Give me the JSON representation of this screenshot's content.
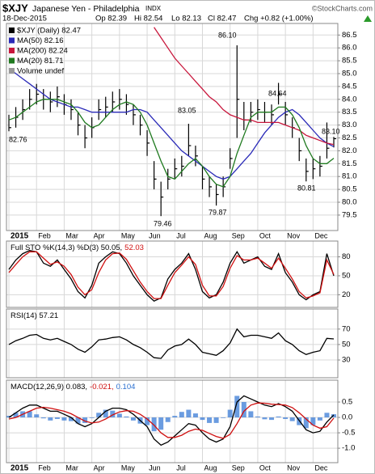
{
  "header": {
    "symbol": "$XJY",
    "name": "Japanese Yen - Philadelphia",
    "exchange": "INDX",
    "source": "©StockCharts.com",
    "date": "18-Dec-2015",
    "open": "Op 82.39",
    "high": "Hi 82.54",
    "low": "Lo 82.13",
    "close": "Cl 82.47",
    "change": "Chg +0.82 (+1.00%)"
  },
  "chart_data": [
    {
      "type": "ohlc",
      "grid": true,
      "categories": [
        "2015",
        null,
        null,
        null,
        "Feb",
        null,
        null,
        null,
        "Mar",
        null,
        null,
        null,
        "Apr",
        null,
        null,
        null,
        "May",
        null,
        null,
        null,
        "Jun",
        null,
        null,
        null,
        "Jul",
        null,
        null,
        null,
        "Aug",
        null,
        null,
        null,
        "Sep",
        null,
        null,
        null,
        "Oct",
        null,
        null,
        null,
        "Nov",
        null,
        null,
        null,
        "Dec",
        null,
        null,
        null
      ],
      "ylim": [
        78.9,
        86.95
      ],
      "yticks": [
        79.5,
        {
          "value": 80,
          "label": "80.0"
        },
        80.5,
        {
          "value": 81,
          "label": "81.0"
        },
        81.5,
        {
          "value": 82,
          "label": "82.0"
        },
        82.5,
        {
          "value": 83,
          "label": "83.0"
        },
        83.5,
        {
          "value": 84,
          "label": "84.0"
        },
        84.5,
        {
          "value": 85,
          "label": "85.0"
        },
        85.5,
        {
          "value": 86,
          "label": "86.0"
        },
        86.5
      ],
      "legend_extra": "Volume undef",
      "annotations": [
        "82.76",
        "79.46",
        "83.05",
        "79.87",
        "86.10",
        "84.64",
        "80.81",
        "83.10"
      ],
      "series": [
        {
          "name": "$XJY (Daily) 82.47",
          "color": "#000000",
          "high": [
            83.4,
            83.7,
            84.0,
            84.4,
            84.6,
            84.4,
            84.3,
            84.5,
            84.2,
            84.0,
            83.5,
            83.0,
            83.3,
            84.0,
            84.1,
            84.3,
            84.4,
            84.2,
            83.8,
            83.4,
            82.8,
            81.6,
            80.8,
            81.3,
            81.7,
            81.8,
            83.05,
            82.2,
            81.4,
            81.0,
            80.7,
            81.0,
            82.1,
            86.1,
            83.9,
            83.9,
            84.0,
            83.9,
            83.8,
            84.64,
            83.9,
            83.3,
            82.5,
            81.7,
            81.7,
            81.8,
            83.1,
            82.54
          ],
          "low": [
            82.76,
            82.9,
            83.2,
            83.6,
            83.8,
            83.6,
            83.5,
            83.7,
            83.4,
            83.2,
            82.6,
            82.1,
            82.5,
            83.2,
            83.3,
            83.5,
            83.6,
            83.4,
            83.0,
            82.6,
            81.8,
            80.5,
            79.46,
            80.5,
            80.9,
            81.0,
            81.8,
            81.4,
            80.5,
            80.2,
            79.87,
            80.2,
            81.3,
            82.5,
            82.8,
            83.1,
            83.2,
            83.1,
            83.0,
            83.8,
            83.0,
            82.5,
            81.6,
            80.81,
            80.9,
            81.0,
            81.7,
            82.13
          ],
          "values": [
            82.9,
            83.3,
            83.6,
            84.0,
            84.2,
            84.0,
            83.9,
            84.1,
            83.8,
            83.6,
            83.0,
            82.5,
            82.9,
            83.6,
            83.7,
            83.9,
            84.0,
            83.8,
            83.4,
            83.0,
            82.3,
            80.9,
            80.2,
            80.9,
            81.3,
            81.4,
            82.2,
            81.8,
            80.9,
            80.6,
            80.3,
            80.6,
            81.7,
            84.0,
            83.2,
            83.5,
            83.6,
            83.5,
            83.4,
            84.2,
            83.4,
            82.9,
            82.0,
            81.2,
            81.3,
            81.4,
            82.1,
            82.47
          ]
        },
        {
          "name": "MA(50) 82.16",
          "color": "#2a2ab8",
          "type": "line",
          "values": [
            85.2,
            85.0,
            84.8,
            84.6,
            84.4,
            84.2,
            84.0,
            83.9,
            83.8,
            83.7,
            83.7,
            83.6,
            83.5,
            83.5,
            83.5,
            83.5,
            83.5,
            83.5,
            83.6,
            83.6,
            83.5,
            83.2,
            82.9,
            82.6,
            82.3,
            82.0,
            81.8,
            81.6,
            81.4,
            81.2,
            81.0,
            80.9,
            81.0,
            81.3,
            81.6,
            81.9,
            82.3,
            82.7,
            83.0,
            83.3,
            83.5,
            83.6,
            83.4,
            83.1,
            82.8,
            82.5,
            82.3,
            82.16
          ]
        },
        {
          "name": "MA(200) 82.24",
          "color": "#c8173c",
          "type": "line",
          "values": [
            null,
            null,
            null,
            null,
            null,
            null,
            null,
            null,
            null,
            null,
            null,
            null,
            null,
            null,
            null,
            null,
            null,
            null,
            null,
            null,
            null,
            86.8,
            86.4,
            86.0,
            85.6,
            85.3,
            85.0,
            84.7,
            84.4,
            84.1,
            83.9,
            83.6,
            83.4,
            83.3,
            83.2,
            83.2,
            83.1,
            83.1,
            83.1,
            83.1,
            83.0,
            82.9,
            82.8,
            82.6,
            82.5,
            82.4,
            82.3,
            82.24
          ]
        },
        {
          "name": "MA(20) 81.71",
          "color": "#1f7a1f",
          "type": "line",
          "values": [
            83.2,
            83.3,
            83.5,
            83.7,
            83.9,
            84.0,
            84.0,
            84.0,
            83.9,
            83.8,
            83.5,
            83.1,
            82.9,
            83.0,
            83.3,
            83.6,
            83.8,
            83.9,
            83.8,
            83.5,
            83.0,
            82.3,
            81.6,
            81.0,
            80.9,
            81.2,
            81.5,
            81.7,
            81.4,
            81.0,
            80.7,
            80.6,
            81.0,
            81.9,
            82.6,
            83.3,
            83.5,
            83.5,
            83.5,
            83.7,
            83.7,
            83.4,
            82.9,
            82.2,
            81.7,
            81.5,
            81.5,
            81.71
          ]
        }
      ]
    },
    {
      "type": "line",
      "grid": true,
      "label": [
        {
          "text": "Full STO %K(14,3) %D(3) 50.05,",
          "color": "#000000"
        },
        {
          "text": "52.03",
          "color": "#d01010"
        }
      ],
      "ylim": [
        0,
        105
      ],
      "yticks": [
        20,
        50,
        80
      ],
      "series": [
        {
          "name": "%K(14,3)",
          "color": "#000000",
          "values": [
            60,
            75,
            85,
            90,
            88,
            70,
            65,
            75,
            60,
            45,
            25,
            15,
            35,
            70,
            80,
            88,
            85,
            70,
            50,
            35,
            20,
            10,
            15,
            45,
            60,
            70,
            85,
            60,
            25,
            15,
            20,
            40,
            70,
            88,
            70,
            75,
            80,
            65,
            60,
            85,
            55,
            40,
            20,
            12,
            20,
            25,
            85,
            50.05
          ]
        },
        {
          "name": "%D(3)",
          "color": "#d01010",
          "values": [
            55,
            68,
            80,
            88,
            88,
            78,
            68,
            72,
            65,
            52,
            32,
            20,
            28,
            55,
            75,
            85,
            86,
            76,
            58,
            40,
            25,
            14,
            14,
            35,
            55,
            67,
            80,
            68,
            35,
            18,
            18,
            33,
            62,
            82,
            75,
            75,
            78,
            70,
            62,
            78,
            62,
            45,
            25,
            15,
            18,
            23,
            75,
            52.03
          ]
        }
      ]
    },
    {
      "type": "line",
      "grid": true,
      "label": [
        {
          "text": "RSI(14) 57.21",
          "color": "#000000"
        }
      ],
      "ylim": [
        7,
        96
      ],
      "yticks": [
        30,
        50,
        70
      ],
      "series": [
        {
          "name": "RSI(14)",
          "color": "#000000",
          "values": [
            50,
            55,
            58,
            62,
            63,
            58,
            56,
            58,
            54,
            50,
            44,
            40,
            47,
            56,
            57,
            59,
            60,
            56,
            50,
            46,
            40,
            33,
            32,
            43,
            48,
            50,
            57,
            50,
            40,
            38,
            36,
            42,
            52,
            70,
            60,
            62,
            62,
            60,
            58,
            65,
            55,
            50,
            42,
            37,
            40,
            42,
            58,
            57.21
          ]
        }
      ]
    },
    {
      "type": "line",
      "grid": true,
      "categories": [
        "2015",
        null,
        null,
        null,
        "Feb",
        null,
        null,
        null,
        "Mar",
        null,
        null,
        null,
        "Apr",
        null,
        null,
        null,
        "May",
        null,
        null,
        null,
        "Jun",
        null,
        null,
        null,
        "Jul",
        null,
        null,
        null,
        "Aug",
        null,
        null,
        null,
        "Sep",
        null,
        null,
        null,
        "Oct",
        null,
        null,
        null,
        "Nov",
        null,
        null,
        null,
        "Dec",
        null,
        null,
        null
      ],
      "label": [
        {
          "text": "MACD(12,26,9) 0.083,",
          "color": "#000000"
        },
        {
          "text": "-0.021,",
          "color": "#d01010"
        },
        {
          "text": "0.104",
          "color": "#2a6fd0"
        }
      ],
      "ylim": [
        -1.47,
        1.21
      ],
      "yticks": [
        0.5,
        {
          "value": 0,
          "label": "0.0"
        },
        -0.5,
        {
          "value": -1,
          "label": "-1.0"
        }
      ],
      "series": [
        {
          "name": "Histogram",
          "color": "#3a7bd5",
          "type": "bar",
          "values": [
            0.05,
            0.15,
            0.2,
            0.2,
            0.1,
            -0.03,
            -0.1,
            -0.05,
            -0.1,
            -0.12,
            -0.2,
            -0.18,
            -0.02,
            0.15,
            0.25,
            0.22,
            0.12,
            0.03,
            -0.1,
            -0.2,
            -0.25,
            -0.45,
            -0.4,
            -0.15,
            0.05,
            0.18,
            0.25,
            0.13,
            -0.08,
            -0.18,
            -0.18,
            -0.02,
            0.25,
            0.7,
            0.5,
            0.2,
            0.03,
            -0.06,
            -0.08,
            0.03,
            -0.05,
            -0.12,
            -0.25,
            -0.35,
            -0.25,
            -0.1,
            0.15,
            0.104
          ]
        },
        {
          "name": "MACD",
          "color": "#000000",
          "values": [
            0.0,
            0.15,
            0.3,
            0.4,
            0.4,
            0.3,
            0.2,
            0.2,
            0.1,
            0.0,
            -0.2,
            -0.3,
            -0.2,
            0.0,
            0.2,
            0.3,
            0.3,
            0.25,
            0.1,
            -0.1,
            -0.3,
            -0.7,
            -0.9,
            -0.8,
            -0.6,
            -0.4,
            -0.2,
            -0.25,
            -0.5,
            -0.7,
            -0.8,
            -0.7,
            -0.3,
            0.5,
            0.7,
            0.6,
            0.5,
            0.4,
            0.35,
            0.45,
            0.35,
            0.2,
            -0.1,
            -0.4,
            -0.5,
            -0.45,
            -0.15,
            0.083
          ]
        },
        {
          "name": "Signal",
          "color": "#d01010",
          "values": [
            -0.05,
            0.0,
            0.1,
            0.2,
            0.3,
            0.33,
            0.3,
            0.25,
            0.2,
            0.12,
            0.0,
            -0.12,
            -0.18,
            -0.15,
            -0.05,
            0.08,
            0.18,
            0.22,
            0.2,
            0.1,
            -0.05,
            -0.25,
            -0.5,
            -0.65,
            -0.65,
            -0.58,
            -0.45,
            -0.38,
            -0.42,
            -0.52,
            -0.62,
            -0.68,
            -0.55,
            -0.2,
            0.2,
            0.4,
            0.47,
            0.46,
            0.43,
            0.42,
            0.4,
            0.32,
            0.15,
            -0.05,
            -0.25,
            -0.35,
            -0.3,
            -0.021
          ]
        }
      ]
    }
  ]
}
